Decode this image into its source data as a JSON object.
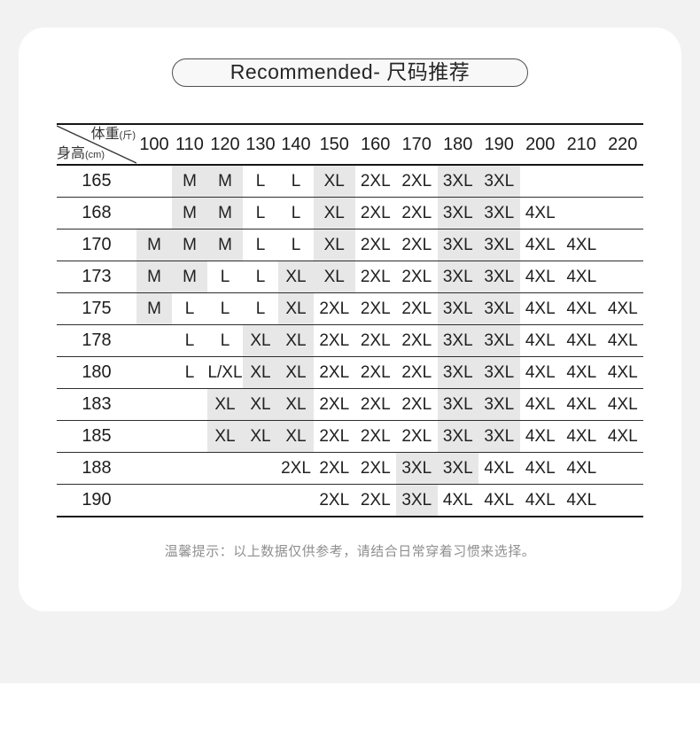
{
  "page": {
    "background_color": "#f2f2f2",
    "card_color": "#ffffff"
  },
  "title": {
    "text": "Recommended- 尺码推荐"
  },
  "size_chart": {
    "corner": {
      "weight_label": "体重",
      "weight_unit": "(斤)",
      "height_label": "身高",
      "height_unit": "(cm)"
    },
    "weight_columns": [
      "100",
      "110",
      "120",
      "130",
      "140",
      "150",
      "160",
      "170",
      "180",
      "190",
      "200",
      "210",
      "220"
    ],
    "highlight_sizes": [
      "M",
      "XL",
      "3XL"
    ],
    "highlight_color": "#e7e7e7",
    "rows": [
      {
        "height": "165",
        "cells": [
          "",
          "M",
          "M",
          "L",
          "L",
          "XL",
          "2XL",
          "2XL",
          "3XL",
          "3XL",
          "",
          "",
          ""
        ]
      },
      {
        "height": "168",
        "cells": [
          "",
          "M",
          "M",
          "L",
          "L",
          "XL",
          "2XL",
          "2XL",
          "3XL",
          "3XL",
          "4XL",
          "",
          ""
        ]
      },
      {
        "height": "170",
        "cells": [
          "M",
          "M",
          "M",
          "L",
          "L",
          "XL",
          "2XL",
          "2XL",
          "3XL",
          "3XL",
          "4XL",
          "4XL",
          ""
        ]
      },
      {
        "height": "173",
        "cells": [
          "M",
          "M",
          "L",
          "L",
          "XL",
          "XL",
          "2XL",
          "2XL",
          "3XL",
          "3XL",
          "4XL",
          "4XL",
          ""
        ]
      },
      {
        "height": "175",
        "cells": [
          "M",
          "L",
          "L",
          "L",
          "XL",
          "2XL",
          "2XL",
          "2XL",
          "3XL",
          "3XL",
          "4XL",
          "4XL",
          "4XL"
        ]
      },
      {
        "height": "178",
        "cells": [
          "",
          "L",
          "L",
          "XL",
          "XL",
          "2XL",
          "2XL",
          "2XL",
          "3XL",
          "3XL",
          "4XL",
          "4XL",
          "4XL"
        ]
      },
      {
        "height": "180",
        "cells": [
          "",
          "L",
          "L/XL",
          "XL",
          "XL",
          "2XL",
          "2XL",
          "2XL",
          "3XL",
          "3XL",
          "4XL",
          "4XL",
          "4XL"
        ]
      },
      {
        "height": "183",
        "cells": [
          "",
          "",
          "XL",
          "XL",
          "XL",
          "2XL",
          "2XL",
          "2XL",
          "3XL",
          "3XL",
          "4XL",
          "4XL",
          "4XL"
        ]
      },
      {
        "height": "185",
        "cells": [
          "",
          "",
          "XL",
          "XL",
          "XL",
          "2XL",
          "2XL",
          "2XL",
          "3XL",
          "3XL",
          "4XL",
          "4XL",
          "4XL"
        ]
      },
      {
        "height": "188",
        "cells": [
          "",
          "",
          "",
          "",
          "2XL",
          "2XL",
          "2XL",
          "3XL",
          "3XL",
          "4XL",
          "4XL",
          "4XL",
          ""
        ]
      },
      {
        "height": "190",
        "cells": [
          "",
          "",
          "",
          "",
          "",
          "2XL",
          "2XL",
          "3XL",
          "4XL",
          "4XL",
          "4XL",
          "4XL",
          ""
        ]
      }
    ]
  },
  "footer": {
    "note": "温馨提示：以上数据仅供参考，请结合日常穿着习惯来选择。"
  }
}
